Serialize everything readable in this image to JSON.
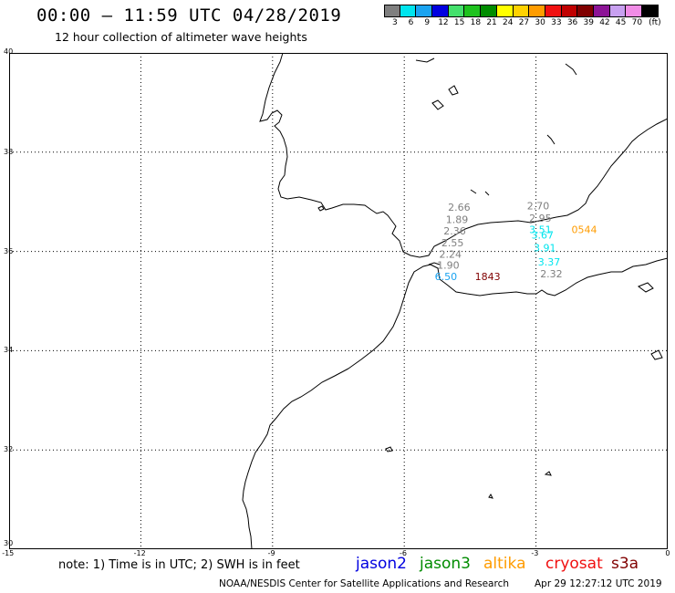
{
  "header": {
    "title": "00:00 – 11:59 UTC 04/28/2019",
    "subtitle": "12 hour collection of altimeter wave heights"
  },
  "legend": {
    "unit": "(ft)",
    "bins": [
      {
        "label": "3",
        "color": "#7f7f7f"
      },
      {
        "label": "6",
        "color": "#00e5ee"
      },
      {
        "label": "9",
        "color": "#1aa3f0"
      },
      {
        "label": "12",
        "color": "#0000e0"
      },
      {
        "label": "15",
        "color": "#44e06c"
      },
      {
        "label": "18",
        "color": "#1ec21e"
      },
      {
        "label": "21",
        "color": "#008c00"
      },
      {
        "label": "24",
        "color": "#ffff00"
      },
      {
        "label": "27",
        "color": "#ffd200"
      },
      {
        "label": "30",
        "color": "#ff9c00"
      },
      {
        "label": "33",
        "color": "#f01010"
      },
      {
        "label": "36",
        "color": "#c00000"
      },
      {
        "label": "39",
        "color": "#800000"
      },
      {
        "label": "42",
        "color": "#8c1496"
      },
      {
        "label": "45",
        "color": "#c8a0f0"
      },
      {
        "label": "70",
        "color": "#f08ce6"
      },
      {
        "label": "",
        "color": "#000000"
      }
    ]
  },
  "map": {
    "lon_ticks": [
      "-15",
      "-12",
      "-9",
      "-6",
      "-3",
      "0"
    ],
    "lat_ticks": [
      "40",
      "38",
      "36",
      "34",
      "32",
      "30"
    ],
    "observations": [
      {
        "text": "2.66",
        "lon": -4.75,
        "lat": 36.82,
        "color": "#7f7f7f"
      },
      {
        "text": "1.89",
        "lon": -4.8,
        "lat": 36.57,
        "color": "#7f7f7f"
      },
      {
        "text": "2.36",
        "lon": -4.85,
        "lat": 36.34,
        "color": "#7f7f7f"
      },
      {
        "text": "2.55",
        "lon": -4.9,
        "lat": 36.1,
        "color": "#7f7f7f"
      },
      {
        "text": "2.24",
        "lon": -4.95,
        "lat": 35.87,
        "color": "#7f7f7f"
      },
      {
        "text": "1.90",
        "lon": -5.0,
        "lat": 35.65,
        "color": "#7f7f7f"
      },
      {
        "text": "6.50",
        "lon": -5.05,
        "lat": 35.42,
        "color": "#1aa3f0"
      },
      {
        "text": "1843",
        "lon": -4.1,
        "lat": 35.42,
        "color": "#800000"
      },
      {
        "text": "2.70",
        "lon": -2.95,
        "lat": 36.85,
        "color": "#7f7f7f"
      },
      {
        "text": "2.95",
        "lon": -2.9,
        "lat": 36.6,
        "color": "#7f7f7f"
      },
      {
        "text": "3.51",
        "lon": -2.9,
        "lat": 36.37,
        "color": "#00e5ee"
      },
      {
        "text": "3.67",
        "lon": -2.85,
        "lat": 36.26,
        "color": "#00e5ee"
      },
      {
        "text": "3.91",
        "lon": -2.8,
        "lat": 36.0,
        "color": "#00e5ee"
      },
      {
        "text": "3.37",
        "lon": -2.7,
        "lat": 35.72,
        "color": "#00e5ee"
      },
      {
        "text": "2.32",
        "lon": -2.65,
        "lat": 35.48,
        "color": "#7f7f7f"
      },
      {
        "text": "0544",
        "lon": -1.9,
        "lat": 36.37,
        "color": "#ff9c00"
      }
    ]
  },
  "footer": {
    "note": "note: 1) Time is in UTC; 2) SWH is in feet",
    "satellites": [
      {
        "name": "jason2",
        "color": "#0000e0"
      },
      {
        "name": "jason3",
        "color": "#008c00"
      },
      {
        "name": "altika",
        "color": "#ff9c00"
      },
      {
        "name": "cryosat",
        "color": "#f01010"
      },
      {
        "name": "s3a",
        "color": "#800000"
      }
    ],
    "credit": "NOAA/NESDIS Center for Satellite Applications and Research",
    "timestamp": "Apr 29 12:27:12 UTC 2019"
  }
}
